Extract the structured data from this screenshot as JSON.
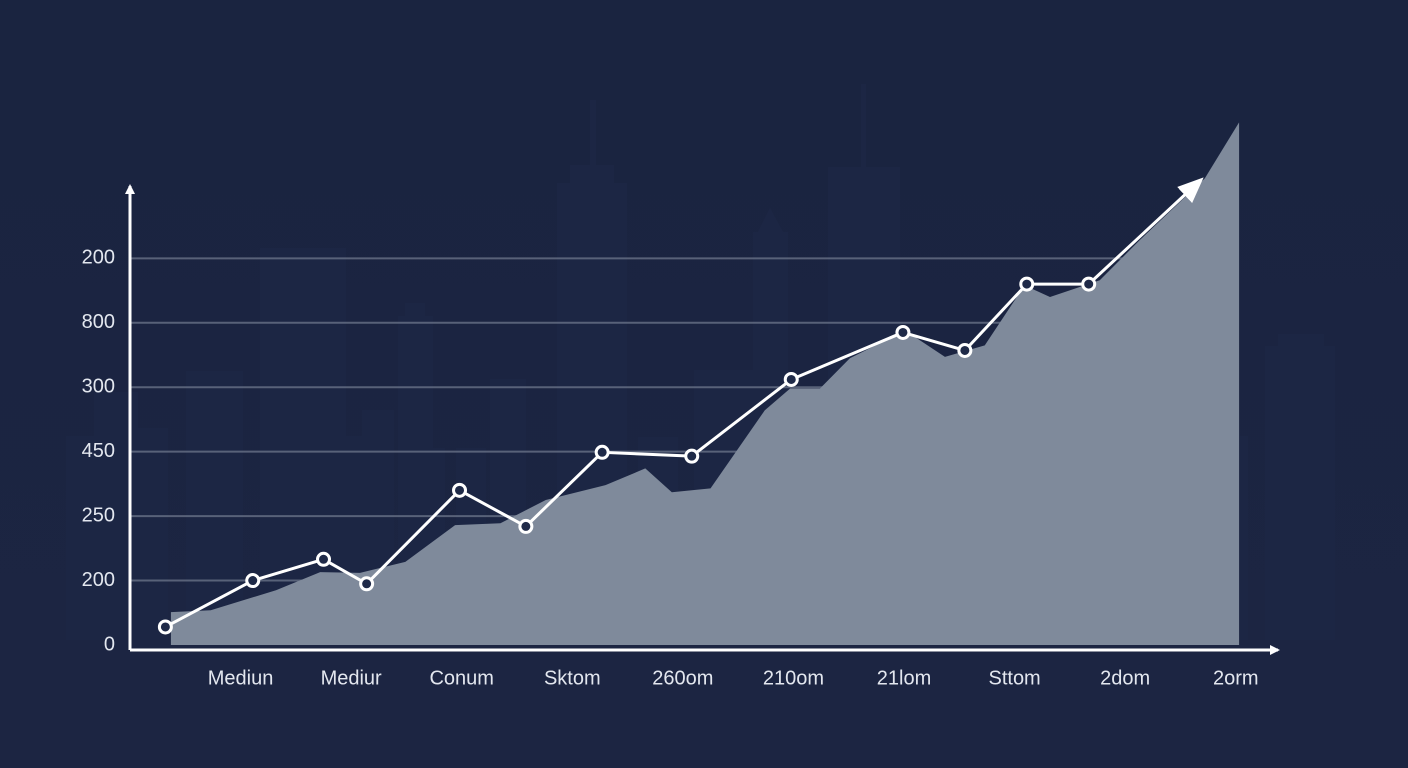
{
  "chart_data": {
    "type": "line",
    "xlim": [
      0,
      10.4
    ],
    "ylim": [
      0,
      7.2
    ],
    "xticks": [
      {
        "value": 1,
        "label": "Mediun"
      },
      {
        "value": 2,
        "label": "Mediur"
      },
      {
        "value": 3,
        "label": "Conum"
      },
      {
        "value": 4,
        "label": "Sktom"
      },
      {
        "value": 5,
        "label": "260om"
      },
      {
        "value": 6,
        "label": "210om"
      },
      {
        "value": 7,
        "label": "21lom"
      },
      {
        "value": 8,
        "label": "Sttom"
      },
      {
        "value": 9,
        "label": "2dom"
      },
      {
        "value": 10,
        "label": "2orm"
      }
    ],
    "yticks": [
      0,
      {
        "value": 1,
        "label": "200"
      },
      {
        "value": 2,
        "label": "250"
      },
      {
        "value": 3,
        "label": "450"
      },
      {
        "value": 4,
        "label": "300"
      },
      {
        "value": 5,
        "label": "800"
      },
      {
        "value": 6,
        "label": "200"
      }
    ],
    "grid": true,
    "series": [
      {
        "type": "area",
        "color": "#7f8a9b",
        "x": [
          0.37,
          0.73,
          1.32,
          1.72,
          2.08,
          2.49,
          2.94,
          3.35,
          3.76,
          4.3,
          4.66,
          4.9,
          5.25,
          5.74,
          5.97,
          6.24,
          6.51,
          7.01,
          7.37,
          7.73,
          8.09,
          8.32,
          8.77,
          9.13,
          9.72,
          10.03
        ],
        "values": [
          0.51,
          0.54,
          0.85,
          1.13,
          1.12,
          1.29,
          1.86,
          1.89,
          2.25,
          2.48,
          2.74,
          2.37,
          2.43,
          3.64,
          3.98,
          3.98,
          4.45,
          4.88,
          4.47,
          4.65,
          5.58,
          5.4,
          5.66,
          6.28,
          7.24,
          8.11
        ]
      },
      {
        "type": "line",
        "color": "#ffffff",
        "arrow": true,
        "x": [
          0.32,
          1.11,
          1.75,
          2.14,
          2.98,
          3.58,
          4.27,
          5.08,
          5.98,
          6.99,
          7.55,
          8.11,
          8.67,
          9.63
        ],
        "values": [
          0.28,
          1.0,
          1.33,
          0.95,
          2.4,
          1.84,
          2.99,
          2.93,
          4.12,
          4.85,
          4.57,
          5.6,
          5.6,
          7.13
        ]
      }
    ]
  }
}
